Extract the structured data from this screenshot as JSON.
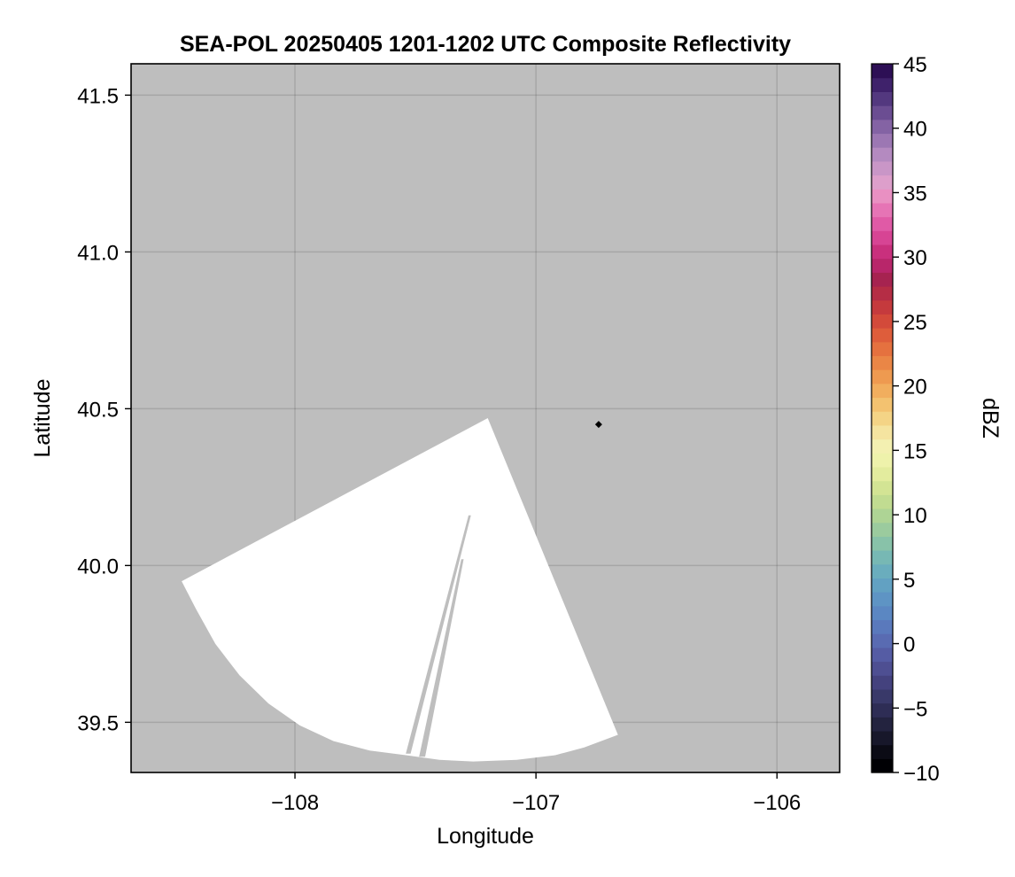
{
  "chart_data": {
    "type": "heatmap",
    "title": "SEA-POL 20250405 1201-1202 UTC Composite Reflectivity",
    "xlabel": "Longitude",
    "ylabel": "Latitude",
    "xlim": [
      -108.68,
      -105.74
    ],
    "ylim": [
      39.34,
      41.6
    ],
    "xticks": [
      -108,
      -107,
      -106
    ],
    "xtick_labels": [
      "−108",
      "−107",
      "−106"
    ],
    "yticks": [
      39.5,
      40.0,
      40.5,
      41.0,
      41.5
    ],
    "ytick_labels": [
      "39.5",
      "40.0",
      "40.5",
      "41.0",
      "41.5"
    ],
    "grid": true,
    "background_color": "#bebebe",
    "coverage_color": "#ffffff",
    "radar_sector": {
      "polygon": [
        [
          -108.47,
          39.95
        ],
        [
          -108.41,
          39.86
        ],
        [
          -108.33,
          39.75
        ],
        [
          -108.23,
          39.65
        ],
        [
          -108.11,
          39.56
        ],
        [
          -107.98,
          39.49
        ],
        [
          -107.84,
          39.44
        ],
        [
          -107.69,
          39.41
        ],
        [
          -107.54,
          39.395
        ],
        [
          -107.4,
          39.38
        ],
        [
          -107.26,
          39.375
        ],
        [
          -107.08,
          39.38
        ],
        [
          -106.92,
          39.395
        ],
        [
          -106.8,
          39.42
        ],
        [
          -106.66,
          39.46
        ],
        [
          -107.2,
          40.47
        ]
      ],
      "gaps": [
        [
          [
            -107.54,
            39.4
          ],
          [
            -107.52,
            39.4
          ],
          [
            -107.27,
            40.16
          ],
          [
            -107.28,
            40.16
          ]
        ],
        [
          [
            -107.485,
            39.39
          ],
          [
            -107.46,
            39.39
          ],
          [
            -107.3,
            40.02
          ],
          [
            -107.31,
            40.02
          ]
        ]
      ]
    },
    "marker": {
      "lon": -106.74,
      "lat": 40.45,
      "shape": "diamond",
      "color": "#000000"
    },
    "colorbar": {
      "label": "dBZ",
      "range": [
        -10,
        45
      ],
      "ticks": [
        -10,
        -5,
        0,
        5,
        10,
        15,
        20,
        25,
        30,
        35,
        40,
        45
      ],
      "tick_labels": [
        "−10",
        "−5",
        "0",
        "5",
        "10",
        "15",
        "20",
        "25",
        "30",
        "35",
        "40",
        "45"
      ],
      "colors": [
        "#000004",
        "#0b0b15",
        "#17172a",
        "#23233f",
        "#2e2d55",
        "#393969",
        "#44427e",
        "#4e4f92",
        "#555ca4",
        "#596bb2",
        "#5a79bc",
        "#5b87c2",
        "#5e94c4",
        "#62a1c2",
        "#6aadbd",
        "#77b8b4",
        "#88c2a9",
        "#9bcb9e",
        "#aed495",
        "#c1dc91",
        "#d3e494",
        "#e3ec9e",
        "#eef2ab",
        "#f3f0b1",
        "#f5e4a0",
        "#f4d486",
        "#f3c270",
        "#f1ae5e",
        "#ee9a50",
        "#ea8646",
        "#e5713f",
        "#de5d3b",
        "#d34a3a",
        "#c53a3d",
        "#b52d45",
        "#a62350",
        "#b8266a",
        "#c9307d",
        "#d74494",
        "#e05aa6",
        "#e674b5",
        "#e990c2",
        "#dd9fcb",
        "#c996c7",
        "#b48ac0",
        "#9c77b3",
        "#8463a4",
        "#6b4d92",
        "#53387f",
        "#3f226b",
        "#2d0f55"
      ]
    }
  }
}
